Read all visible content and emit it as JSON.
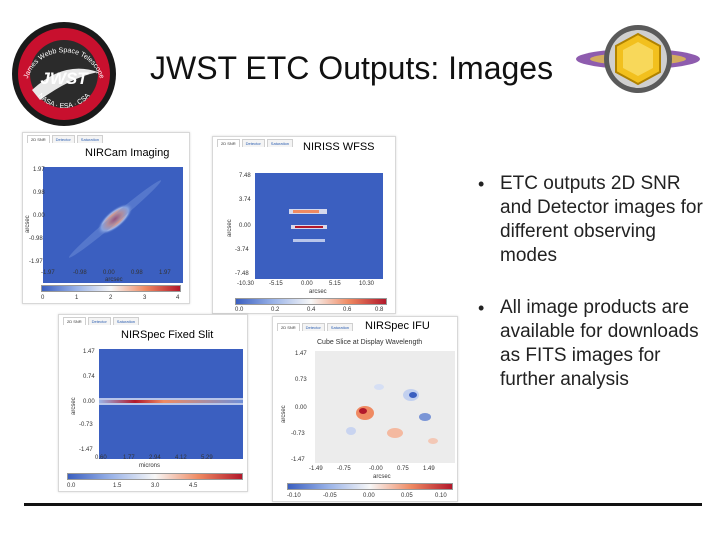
{
  "slide": {
    "title": "JWST ETC Outputs: Images",
    "logo_text": "JWST",
    "logo_top_arc": "James Webb Space Telescope",
    "logo_bottom_arc": "NASA · ESA · CSA"
  },
  "tabs": [
    "2D SNR",
    "Detector",
    "Saturation"
  ],
  "panels": {
    "nircam": {
      "label": "NIRCam Imaging",
      "y_ticks": [
        "1.97",
        "0.98",
        "0.00",
        "-0.98",
        "-1.97"
      ],
      "x_ticks": [
        "-1.97",
        "-0.98",
        "0.00",
        "0.98",
        "1.97"
      ],
      "xlabel": "arcsec",
      "ylabel": "arcsec",
      "cbar_ticks": [
        "0",
        "1",
        "2",
        "3",
        "4"
      ]
    },
    "niriss": {
      "label": "NIRISS WFSS",
      "y_ticks": [
        "7.48",
        "3.74",
        "0.00",
        "-3.74",
        "-7.48"
      ],
      "x_ticks": [
        "-10.30",
        "-5.15",
        "0.00",
        "5.15",
        "10.30"
      ],
      "xlabel": "arcsec",
      "ylabel": "arcsec",
      "cbar_ticks": [
        "0.0",
        "0.2",
        "0.4",
        "0.6",
        "0.8"
      ]
    },
    "nirspec_slit": {
      "label": "NIRSpec Fixed Slit",
      "y_ticks": [
        "1.47",
        "0.74",
        "0.00",
        "-0.73",
        "-1.47"
      ],
      "x_ticks": [
        "0.60",
        "1.77",
        "2.94",
        "4.12",
        "5.29"
      ],
      "xlabel": "microns",
      "ylabel": "arcsec",
      "cbar_ticks": [
        "0.0",
        "1.5",
        "3.0",
        "4.5"
      ]
    },
    "nirspec_ifu": {
      "label": "NIRSpec IFU",
      "plot_title": "Cube Slice at Display Wavelength",
      "y_ticks": [
        "1.47",
        "0.73",
        "0.00",
        "-0.73",
        "-1.47"
      ],
      "x_ticks": [
        "-1.49",
        "-0.75",
        "-0.00",
        "0.75",
        "1.49"
      ],
      "xlabel": "arcsec",
      "ylabel": "arcsec",
      "cbar_ticks": [
        "-0.10",
        "-0.05",
        "0.00",
        "0.05",
        "0.10"
      ]
    }
  },
  "bullets": [
    "ETC outputs 2D SNR and Detector images for different observing modes",
    "All image products are available for downloads as FITS images for further analysis"
  ],
  "colors": {
    "plot_blue": "#3b5fc0",
    "plot_red": "#b2182b",
    "text": "#222222"
  }
}
